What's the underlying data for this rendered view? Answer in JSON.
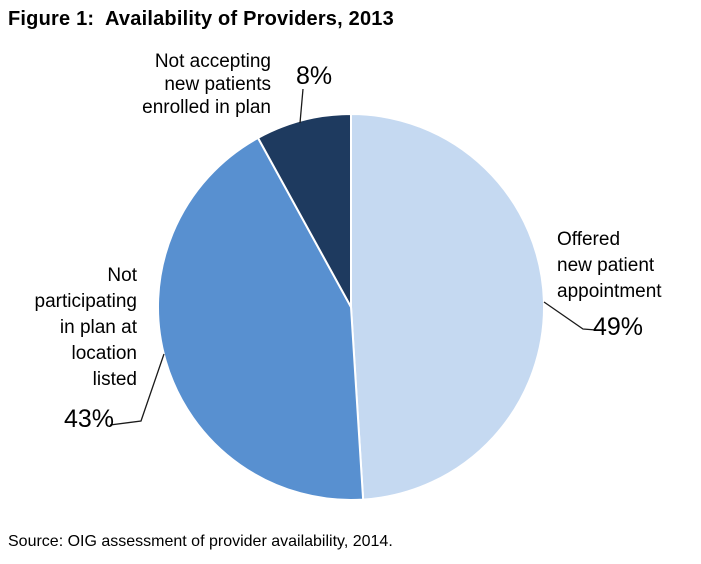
{
  "chart_data": {
    "type": "pie",
    "title": "Figure 1:  Availability of Providers, 2013",
    "direction": "clockwise",
    "start_angle_deg": 0,
    "total": 100,
    "legend_position": "outside-labels-with-leader-lines",
    "slices": [
      {
        "name": "offered",
        "label": "Offered new patient appointment",
        "label_display": "Offered\nnew patient\nappointment",
        "value": 49,
        "pct_display": "49%",
        "color": "#C5D9F1"
      },
      {
        "name": "not-participating",
        "label": "Not participating in plan at location listed",
        "label_display": "Not\nparticipating\nin plan at\nlocation\nlisted",
        "value": 43,
        "pct_display": "43%",
        "color": "#5890D0"
      },
      {
        "name": "not-accepting",
        "label": "Not accepting new patients enrolled in plan",
        "label_display": "Not accepting\nnew patients\nenrolled in plan",
        "value": 8,
        "pct_display": "8%",
        "color": "#1E3A5F"
      }
    ],
    "source_note": "Source: OIG assessment of provider availability, 2014."
  }
}
